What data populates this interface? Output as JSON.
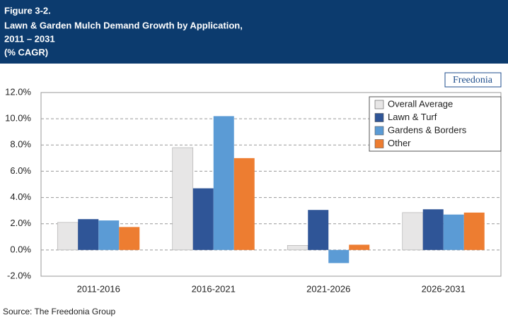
{
  "chart_data": {
    "type": "bar",
    "figure_label": "Figure 3-2.",
    "title_lines": [
      "Lawn & Garden Mulch Demand Growth by Application,",
      "2011 – 2031",
      "(% CAGR)"
    ],
    "logo": "Freedonia",
    "source": "Source: The Freedonia Group",
    "categories": [
      "2011-2016",
      "2016-2021",
      "2021-2026",
      "2026-2031"
    ],
    "series": [
      {
        "name": "Overall Average",
        "color": "#e7e6e6",
        "values": [
          2.1,
          7.8,
          0.35,
          2.85
        ]
      },
      {
        "name": "Lawn & Turf",
        "color": "#2f5597",
        "values": [
          2.35,
          4.7,
          3.05,
          3.1
        ]
      },
      {
        "name": "Gardens & Borders",
        "color": "#5b9bd5",
        "values": [
          2.25,
          10.2,
          -1.0,
          2.7
        ]
      },
      {
        "name": "Other",
        "color": "#ed7d31",
        "values": [
          1.75,
          7.0,
          0.4,
          2.85
        ]
      }
    ],
    "ylim": [
      -2,
      12
    ],
    "yticks": [
      {
        "value": -2,
        "label": "-2.0%"
      },
      {
        "value": 0,
        "label": "0.0%"
      },
      {
        "value": 2,
        "label": "2.0%"
      },
      {
        "value": 4,
        "label": "4.0%"
      },
      {
        "value": 6,
        "label": "6.0%"
      },
      {
        "value": 8,
        "label": "8.0%"
      },
      {
        "value": 10,
        "label": "10.0%"
      },
      {
        "value": 12,
        "label": "12.0%"
      }
    ],
    "grid": true,
    "legend": "upper-right"
  }
}
